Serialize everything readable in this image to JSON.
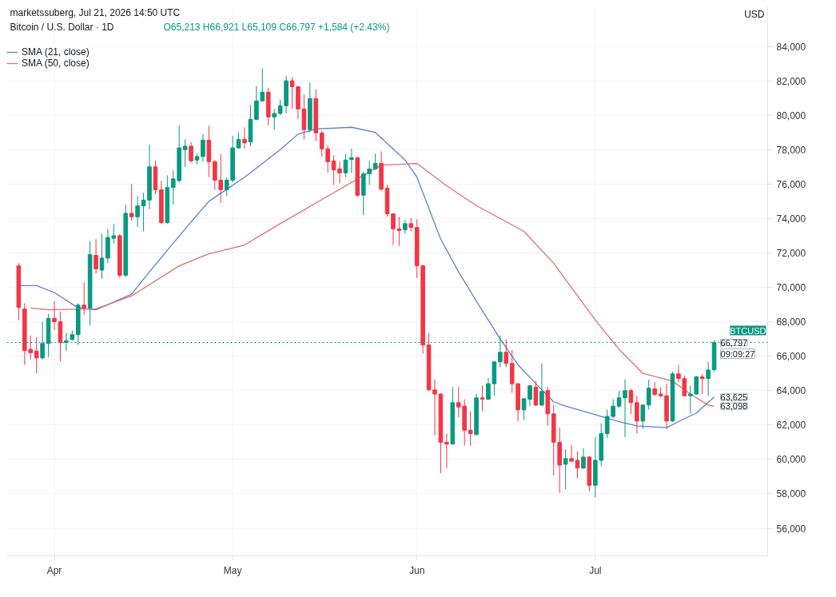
{
  "chart_data": {
    "type": "candlestick",
    "title": "Bitcoin / U.S. Dollar · 1D",
    "subtitle": "O65,213 H66,921 L65,109 C66,797 +1,584 (+2.43%)",
    "ylabel": "USD",
    "x": [
      "2026-03-26",
      "2026-03-27",
      "2026-03-28",
      "2026-03-29",
      "2026-03-30",
      "2026-03-31",
      "2026-04-01",
      "2026-04-02",
      "2026-04-03",
      "2026-04-04",
      "2026-04-05",
      "2026-04-06",
      "2026-04-07",
      "2026-04-08",
      "2026-04-09",
      "2026-04-10",
      "2026-04-11",
      "2026-04-12",
      "2026-04-13",
      "2026-04-14",
      "2026-04-15",
      "2026-04-16",
      "2026-04-17",
      "2026-04-18",
      "2026-04-19",
      "2026-04-20",
      "2026-04-21",
      "2026-04-22",
      "2026-04-23",
      "2026-04-24",
      "2026-04-25",
      "2026-04-26",
      "2026-04-27",
      "2026-04-28",
      "2026-04-29",
      "2026-04-30",
      "2026-05-01",
      "2026-05-02",
      "2026-05-03",
      "2026-05-04",
      "2026-05-05",
      "2026-05-06",
      "2026-05-07",
      "2026-05-08",
      "2026-05-09",
      "2026-05-10",
      "2026-05-11",
      "2026-05-12",
      "2026-05-13",
      "2026-05-14",
      "2026-05-15",
      "2026-05-16",
      "2026-05-17",
      "2026-05-18",
      "2026-05-19",
      "2026-05-20",
      "2026-05-21",
      "2026-05-22",
      "2026-05-23",
      "2026-05-24",
      "2026-05-25",
      "2026-05-26",
      "2026-05-27",
      "2026-05-28",
      "2026-05-29",
      "2026-05-30",
      "2026-05-31",
      "2026-06-01",
      "2026-06-02",
      "2026-06-03",
      "2026-06-04",
      "2026-06-05",
      "2026-06-06",
      "2026-06-07",
      "2026-06-08",
      "2026-06-09",
      "2026-06-10",
      "2026-06-11",
      "2026-06-12",
      "2026-06-13",
      "2026-06-14",
      "2026-06-15",
      "2026-06-16",
      "2026-06-17",
      "2026-06-18",
      "2026-06-19",
      "2026-06-20",
      "2026-06-21",
      "2026-06-22",
      "2026-06-23",
      "2026-06-24",
      "2026-06-25",
      "2026-06-26",
      "2026-06-27",
      "2026-06-28",
      "2026-06-29",
      "2026-06-30",
      "2026-07-01",
      "2026-07-02",
      "2026-07-03",
      "2026-07-04",
      "2026-07-05",
      "2026-07-06",
      "2026-07-07",
      "2026-07-08",
      "2026-07-09",
      "2026-07-10",
      "2026-07-11",
      "2026-07-12",
      "2026-07-13",
      "2026-07-14",
      "2026-07-15",
      "2026-07-16",
      "2026-07-17",
      "2026-07-18",
      "2026-07-19",
      "2026-07-20",
      "2026-07-21"
    ],
    "ohlc": [
      [
        71250,
        71400,
        68100,
        68830
      ],
      [
        68740,
        69070,
        65500,
        66320
      ],
      [
        66400,
        67200,
        65800,
        66200
      ],
      [
        66300,
        67100,
        65000,
        65900
      ],
      [
        65900,
        68000,
        65800,
        66740
      ],
      [
        66740,
        68460,
        65950,
        68200
      ],
      [
        68200,
        69200,
        67500,
        68000
      ],
      [
        68000,
        68600,
        65700,
        66800
      ],
      [
        66800,
        67350,
        66300,
        66900
      ],
      [
        66970,
        67500,
        66900,
        67250
      ],
      [
        67250,
        69070,
        66650,
        68970
      ],
      [
        68970,
        70300,
        68400,
        68800
      ],
      [
        68800,
        72700,
        67800,
        71900
      ],
      [
        71860,
        72800,
        70800,
        71070
      ],
      [
        71000,
        73100,
        70500,
        71700
      ],
      [
        71700,
        73400,
        71400,
        72900
      ],
      [
        72850,
        73700,
        72550,
        73000
      ],
      [
        73000,
        73100,
        70550,
        70700
      ],
      [
        70700,
        74800,
        70600,
        74300
      ],
      [
        74300,
        76000,
        73870,
        74100
      ],
      [
        74100,
        75300,
        73500,
        74740
      ],
      [
        74740,
        75500,
        73250,
        75070
      ],
      [
        75070,
        78300,
        74550,
        77000
      ],
      [
        77000,
        77350,
        75400,
        75670
      ],
      [
        75670,
        76200,
        73700,
        73760
      ],
      [
        73760,
        76500,
        73700,
        75800
      ],
      [
        75800,
        76800,
        74800,
        76300
      ],
      [
        76200,
        79400,
        76100,
        78100
      ],
      [
        78000,
        78600,
        77000,
        78200
      ],
      [
        78200,
        78450,
        77250,
        77350
      ],
      [
        77400,
        77750,
        77150,
        77600
      ],
      [
        77600,
        78900,
        77300,
        78550
      ],
      [
        78550,
        79400,
        76400,
        77300
      ],
      [
        77300,
        77400,
        75670,
        76230
      ],
      [
        76230,
        77750,
        74900,
        75670
      ],
      [
        75670,
        76400,
        75300,
        76230
      ],
      [
        76230,
        78800,
        76100,
        78100
      ],
      [
        78100,
        79000,
        78050,
        78600
      ],
      [
        78600,
        79300,
        78050,
        78400
      ],
      [
        78450,
        80600,
        78200,
        79760
      ],
      [
        79760,
        81700,
        79700,
        80830
      ],
      [
        80830,
        82700,
        80800,
        81340
      ],
      [
        81340,
        81600,
        79400,
        79900
      ],
      [
        79900,
        80370,
        79160,
        80100
      ],
      [
        80100,
        80900,
        80000,
        80550
      ],
      [
        80550,
        82300,
        80100,
        82000
      ],
      [
        82000,
        82200,
        80370,
        81650
      ],
      [
        81650,
        81700,
        79760,
        80370
      ],
      [
        80370,
        81200,
        78600,
        79160
      ],
      [
        79160,
        81900,
        79000,
        80970
      ],
      [
        80970,
        81500,
        78500,
        78970
      ],
      [
        78970,
        79100,
        77600,
        78050
      ],
      [
        78050,
        78270,
        76650,
        77300
      ],
      [
        77350,
        77670,
        75950,
        76830
      ],
      [
        76880,
        77300,
        76040,
        76650
      ],
      [
        76650,
        77750,
        76400,
        77400
      ],
      [
        77430,
        78050,
        76650,
        77530
      ],
      [
        77530,
        77600,
        75250,
        75350
      ],
      [
        75350,
        76700,
        74200,
        76600
      ],
      [
        76600,
        77350,
        75950,
        76880
      ],
      [
        76880,
        77760,
        76830,
        77200
      ],
      [
        77200,
        77900,
        75600,
        75700
      ],
      [
        75760,
        75950,
        74100,
        74270
      ],
      [
        74270,
        74300,
        72460,
        73400
      ],
      [
        73400,
        74100,
        72400,
        73300
      ],
      [
        73350,
        73900,
        73100,
        73700
      ],
      [
        73700,
        74040,
        73250,
        73480
      ],
      [
        73480,
        73950,
        70550,
        71250
      ],
      [
        71250,
        71300,
        66140,
        66650
      ],
      [
        66650,
        67350,
        64000,
        64040
      ],
      [
        64040,
        64650,
        61400,
        63800
      ],
      [
        63800,
        63850,
        59200,
        61000
      ],
      [
        61000,
        61500,
        59500,
        60900
      ],
      [
        60900,
        64200,
        60850,
        63300
      ],
      [
        63300,
        64200,
        62460,
        63050
      ],
      [
        63100,
        63500,
        60800,
        61700
      ],
      [
        61700,
        62800,
        60800,
        61500
      ],
      [
        61450,
        63800,
        61400,
        63580
      ],
      [
        63580,
        64300,
        62800,
        63500
      ],
      [
        63500,
        64740,
        63450,
        64400
      ],
      [
        64400,
        65700,
        63700,
        65670
      ],
      [
        65670,
        67200,
        65350,
        66230
      ],
      [
        66230,
        66970,
        65350,
        65580
      ],
      [
        65580,
        66370,
        63860,
        64400
      ],
      [
        64400,
        64450,
        62230,
        62880
      ],
      [
        62880,
        63550,
        62300,
        63530
      ],
      [
        63500,
        64300,
        63100,
        64280
      ],
      [
        64200,
        64560,
        63100,
        63160
      ],
      [
        63160,
        65580,
        63100,
        63950
      ],
      [
        64000,
        64200,
        61950,
        62650
      ],
      [
        62650,
        63160,
        59070,
        61000
      ],
      [
        61000,
        61860,
        58050,
        59670
      ],
      [
        59720,
        60600,
        58280,
        60050
      ],
      [
        60050,
        60840,
        59850,
        59900
      ],
      [
        59950,
        60460,
        58900,
        59500
      ],
      [
        59500,
        60650,
        59450,
        60140
      ],
      [
        60140,
        60200,
        58140,
        58500
      ],
      [
        58500,
        61300,
        57800,
        59950
      ],
      [
        59950,
        62100,
        59600,
        61500
      ],
      [
        61500,
        62900,
        61250,
        62500
      ],
      [
        62500,
        63500,
        62400,
        63100
      ],
      [
        63100,
        64000,
        63000,
        63580
      ],
      [
        63580,
        64650,
        61300,
        64000
      ],
      [
        64000,
        64100,
        62650,
        63300
      ],
      [
        63300,
        63700,
        61500,
        62230
      ],
      [
        62230,
        63200,
        61770,
        63160
      ],
      [
        63160,
        64650,
        62900,
        64140
      ],
      [
        64100,
        64500,
        63700,
        63770
      ],
      [
        63800,
        64200,
        63600,
        63700
      ],
      [
        63700,
        64400,
        61770,
        62230
      ],
      [
        62230,
        65100,
        62200,
        64970
      ],
      [
        64970,
        65500,
        64500,
        64700
      ],
      [
        64700,
        64880,
        63650,
        63700
      ],
      [
        63700,
        64300,
        62650,
        63800
      ],
      [
        63800,
        64850,
        63750,
        64800
      ],
      [
        64800,
        64970,
        63800,
        64700
      ],
      [
        64700,
        65670,
        63700,
        65200
      ],
      [
        65213,
        66921,
        65109,
        66797
      ]
    ],
    "colors": [
      "#f23645",
      "#f23645",
      "#f23645",
      "#f23645",
      "#089981",
      "#089981",
      "#f23645",
      "#f23645",
      "#089981",
      "#089981",
      "#089981",
      "#f23645",
      "#089981",
      "#f23645",
      "#089981",
      "#089981",
      "#089981",
      "#f23645",
      "#089981",
      "#f23645",
      "#089981",
      "#089981",
      "#089981",
      "#f23645",
      "#f23645",
      "#089981",
      "#089981",
      "#089981",
      "#089981",
      "#f23645",
      "#089981",
      "#089981",
      "#f23645",
      "#f23645",
      "#f23645",
      "#089981",
      "#089981",
      "#089981",
      "#f23645",
      "#089981",
      "#089981",
      "#089981",
      "#f23645",
      "#089981",
      "#089981",
      "#089981",
      "#f23645",
      "#f23645",
      "#f23645",
      "#089981",
      "#f23645",
      "#f23645",
      "#f23645",
      "#f23645",
      "#f23645",
      "#089981",
      "#089981",
      "#f23645",
      "#089981",
      "#089981",
      "#089981",
      "#f23645",
      "#f23645",
      "#f23645",
      "#f23645",
      "#089981",
      "#f23645",
      "#f23645",
      "#f23645",
      "#f23645",
      "#f23645",
      "#f23645",
      "#f23645",
      "#089981",
      "#f23645",
      "#f23645",
      "#f23645",
      "#089981",
      "#f23645",
      "#089981",
      "#089981",
      "#089981",
      "#f23645",
      "#f23645",
      "#f23645",
      "#089981",
      "#089981",
      "#f23645",
      "#089981",
      "#f23645",
      "#f23645",
      "#f23645",
      "#089981",
      "#f23645",
      "#f23645",
      "#089981",
      "#f23645",
      "#089981",
      "#089981",
      "#089981",
      "#089981",
      "#089981",
      "#089981",
      "#f23645",
      "#f23645",
      "#089981",
      "#089981",
      "#f23645",
      "#f23645",
      "#f23645",
      "#089981",
      "#f23645",
      "#f23645",
      "#089981",
      "#089981",
      "#f23645",
      "#089981",
      "#089981"
    ],
    "series": [
      {
        "name": "SMA (21, close)",
        "type": "line",
        "color": "#5b7fd6",
        "x": [
          "2026-03-26",
          "2026-03-29",
          "2026-04-01",
          "2026-04-05",
          "2026-04-08",
          "2026-04-14",
          "2026-04-17",
          "2026-04-23",
          "2026-04-27",
          "2026-05-03",
          "2026-05-09",
          "2026-05-12",
          "2026-05-15",
          "2026-05-21",
          "2026-05-25",
          "2026-05-30",
          "2026-06-01",
          "2026-06-05",
          "2026-06-08",
          "2026-06-11",
          "2026-06-13",
          "2026-06-15",
          "2026-06-18",
          "2026-06-21",
          "2026-06-24",
          "2026-06-26",
          "2026-07-01",
          "2026-07-05",
          "2026-07-08",
          "2026-07-13",
          "2026-07-15",
          "2026-07-18",
          "2026-07-21"
        ],
        "values": [
          70100,
          70100,
          69700,
          68800,
          68700,
          69600,
          70900,
          73400,
          75000,
          76400,
          78000,
          78900,
          79200,
          79300,
          79000,
          77400,
          76400,
          72800,
          70900,
          69200,
          68100,
          67000,
          65500,
          64400,
          63350,
          63100,
          62600,
          62200,
          61950,
          61850,
          62200,
          62700,
          63625
        ]
      },
      {
        "name": "SMA (50, close)",
        "type": "line",
        "color": "#e07070",
        "x": [
          "2026-03-28",
          "2026-03-31",
          "2026-04-08",
          "2026-04-14",
          "2026-04-22",
          "2026-04-27",
          "2026-05-03",
          "2026-05-09",
          "2026-05-16",
          "2026-05-22",
          "2026-05-26",
          "2026-06-01",
          "2026-06-06",
          "2026-06-11",
          "2026-06-19",
          "2026-06-24",
          "2026-07-01",
          "2026-07-05",
          "2026-07-09",
          "2026-07-14",
          "2026-07-17",
          "2026-07-20",
          "2026-07-21"
        ],
        "values": [
          68800,
          68700,
          68750,
          69500,
          71250,
          71950,
          72460,
          73700,
          75100,
          76300,
          77100,
          77200,
          75900,
          74750,
          73250,
          71400,
          68100,
          66400,
          65000,
          64550,
          63800,
          63160,
          63098
        ]
      }
    ],
    "xlim": [
      "2026-03-24",
      "2026-07-30"
    ],
    "xticks": [
      {
        "value": "2026-04-01",
        "label": "Apr"
      },
      {
        "value": "2026-05-01",
        "label": "May"
      },
      {
        "value": "2026-06-01",
        "label": "Jun"
      },
      {
        "value": "2026-07-01",
        "label": "Jul"
      }
    ],
    "ylim": [
      54400,
      86300
    ],
    "yticks": [
      {
        "value": 56000,
        "label": "56,000"
      },
      {
        "value": 58000,
        "label": "58,000"
      },
      {
        "value": 60000,
        "label": "60,000"
      },
      {
        "value": 62000,
        "label": "62,000"
      },
      {
        "value": 64000,
        "label": "64,000"
      },
      {
        "value": 66000,
        "label": "66,000"
      },
      {
        "value": 68000,
        "label": "68,000"
      },
      {
        "value": 70000,
        "label": "70,000"
      },
      {
        "value": 72000,
        "label": "72,000"
      },
      {
        "value": 74000,
        "label": "74,000"
      },
      {
        "value": 76000,
        "label": "76,000"
      },
      {
        "value": 78000,
        "label": "78,000"
      },
      {
        "value": 80000,
        "label": "80,000"
      },
      {
        "value": 82000,
        "label": "82,000"
      },
      {
        "value": 84000,
        "label": "84,000"
      }
    ],
    "grid": true,
    "legend": "top left",
    "ref_lines": [
      {
        "axis": "y",
        "value": 66797,
        "label": "BTCUSD",
        "color": "#089981",
        "line_style": "dotted"
      }
    ],
    "annotations": [
      "marketssuberg, Jul 21, 2026 14:50 UTC",
      {
        "text": "66,797",
        "x": "2026-07-21",
        "y": 66797
      },
      {
        "text": "09:09:27",
        "x": "2026-07-21",
        "y": 66797
      },
      {
        "text": "63,625",
        "x": "2026-07-21",
        "y": 63625
      },
      {
        "text": "63,098",
        "x": "2026-07-21",
        "y": 63098
      }
    ]
  }
}
